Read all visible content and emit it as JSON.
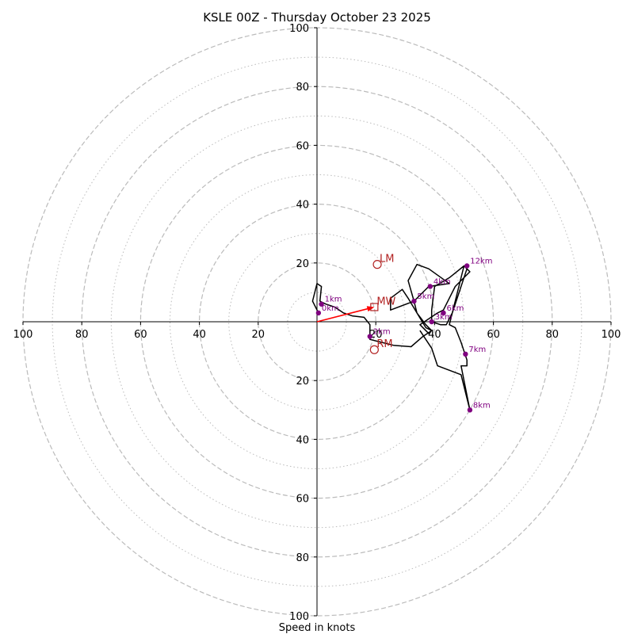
{
  "chart_data": {
    "type": "hodograph",
    "title": "KSLE 00Z - Thursday October 23 2025",
    "xlabel": "Speed in knots",
    "units": "knots",
    "max_radius": 100,
    "ring_major": [
      20,
      40,
      60,
      80,
      100
    ],
    "ring_minor": [
      10,
      30,
      50,
      70,
      90
    ],
    "x_ticks": [
      {
        "value": -100,
        "label": "100"
      },
      {
        "value": -80,
        "label": "80"
      },
      {
        "value": -60,
        "label": "60"
      },
      {
        "value": -40,
        "label": "40"
      },
      {
        "value": -20,
        "label": "20"
      },
      {
        "value": 20,
        "label": "20"
      },
      {
        "value": 40,
        "label": "40"
      },
      {
        "value": 60,
        "label": "60"
      },
      {
        "value": 80,
        "label": "80"
      },
      {
        "value": 100,
        "label": "100"
      }
    ],
    "y_ticks": [
      {
        "value": 100,
        "label": "100"
      },
      {
        "value": 80,
        "label": "80"
      },
      {
        "value": 60,
        "label": "60"
      },
      {
        "value": 40,
        "label": "40"
      },
      {
        "value": 20,
        "label": "20"
      },
      {
        "value": -20,
        "label": "20"
      },
      {
        "value": -40,
        "label": "40"
      },
      {
        "value": -60,
        "label": "60"
      },
      {
        "value": -80,
        "label": "80"
      },
      {
        "value": -100,
        "label": "100"
      }
    ],
    "trace": [
      [
        0.5,
        3
      ],
      [
        -1.5,
        7
      ],
      [
        0,
        13
      ],
      [
        1.5,
        12
      ],
      [
        1,
        7
      ],
      [
        3,
        6
      ],
      [
        6,
        5
      ],
      [
        9,
        3
      ],
      [
        12,
        2
      ],
      [
        16,
        1.5
      ],
      [
        18,
        -1
      ],
      [
        18,
        -6
      ],
      [
        22,
        -7
      ],
      [
        26,
        -8
      ],
      [
        32,
        -8.5
      ],
      [
        36,
        -5
      ],
      [
        39,
        -3
      ],
      [
        37,
        -1
      ],
      [
        34,
        3
      ],
      [
        31,
        8
      ],
      [
        29,
        11
      ],
      [
        25,
        8
      ],
      [
        25,
        4
      ],
      [
        33,
        7
      ],
      [
        38,
        12
      ],
      [
        45,
        13
      ],
      [
        38,
        18
      ],
      [
        34,
        19.5
      ],
      [
        31,
        14
      ],
      [
        33,
        7
      ],
      [
        34,
        3
      ],
      [
        37,
        -2
      ],
      [
        39,
        -3
      ],
      [
        38,
        -4
      ],
      [
        35,
        -1
      ],
      [
        41,
        3
      ],
      [
        43,
        4
      ],
      [
        47,
        12
      ],
      [
        52,
        17
      ],
      [
        50,
        19
      ],
      [
        45,
        15
      ],
      [
        40,
        12
      ],
      [
        39,
        4
      ],
      [
        39,
        0
      ],
      [
        42,
        -1
      ],
      [
        44,
        -1
      ],
      [
        46,
        3
      ],
      [
        47,
        7
      ],
      [
        50,
        19
      ],
      [
        51,
        18
      ],
      [
        46,
        3
      ],
      [
        45,
        -1
      ],
      [
        47,
        -2
      ],
      [
        49,
        -7
      ],
      [
        51,
        -13
      ],
      [
        51,
        -15
      ],
      [
        49,
        -15
      ],
      [
        52,
        -30
      ],
      [
        49,
        -18
      ],
      [
        41,
        -15
      ],
      [
        39,
        -9
      ],
      [
        37,
        -6
      ],
      [
        35,
        -3
      ]
    ],
    "height_markers": [
      {
        "label": "0km",
        "u": 0.5,
        "v": 3
      },
      {
        "label": "1km",
        "u": 1.5,
        "v": 6
      },
      {
        "label": "2km",
        "u": 18,
        "v": -5
      },
      {
        "label": "3km",
        "u": 39,
        "v": 0
      },
      {
        "label": "4km",
        "u": 38.5,
        "v": 12
      },
      {
        "label": "5km",
        "u": 33,
        "v": 7
      },
      {
        "label": "6km",
        "u": 43,
        "v": 3
      },
      {
        "label": "7km",
        "u": 50.5,
        "v": -11
      },
      {
        "label": "8km",
        "u": 52,
        "v": -30
      },
      {
        "label": "12km",
        "u": 51,
        "v": 19
      }
    ],
    "storm_motions": [
      {
        "label": "LM",
        "u": 20.5,
        "v": 19.5,
        "marker": "circle"
      },
      {
        "label": "MW",
        "u": 19.5,
        "v": 5,
        "marker": "square"
      },
      {
        "label": "RM",
        "u": 19.5,
        "v": -9.5,
        "marker": "circle"
      }
    ],
    "mean_wind_vector": {
      "u": 19.5,
      "v": 5
    },
    "colors": {
      "trace": "#000000",
      "height_markers": "#800080",
      "storm_motion": "#b22222",
      "vector": "#ff0000",
      "grid": "#bbbbbb"
    }
  }
}
